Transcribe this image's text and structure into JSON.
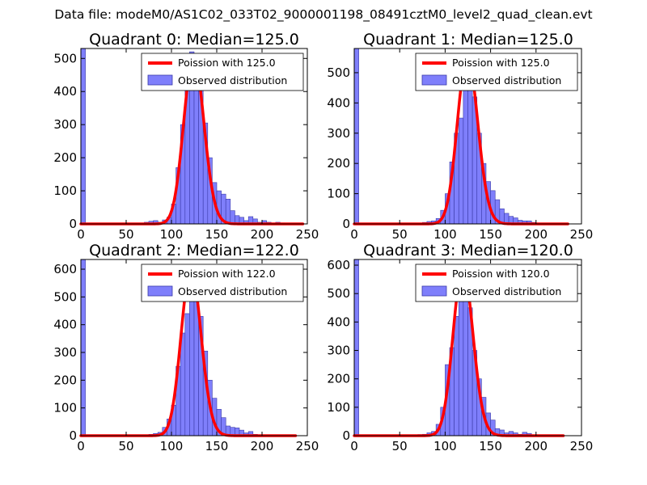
{
  "figure": {
    "suptitle": "Data file: modeM0/AS1C02_033T02_9000001198_08491cztM0_level2_quad_clean.evt"
  },
  "colors": {
    "poisson_line": "#ff0000",
    "histogram_fill": "#7f7ffb",
    "histogram_edge": "#3a3aa8",
    "axes": "#000000",
    "background": "#ffffff"
  },
  "chart_data": [
    {
      "type": "bar",
      "title": "Quadrant 0: Median=125.0",
      "legend": {
        "placement": "top-right",
        "entries": [
          "Poission with 125.0",
          "Observed distribution"
        ]
      },
      "xlim": [
        0,
        250
      ],
      "ylim": [
        0,
        530
      ],
      "xticks": [
        "0",
        "50",
        "100",
        "150",
        "200",
        "250"
      ],
      "yticks": [
        "0",
        "100",
        "200",
        "300",
        "400",
        "500"
      ],
      "ytick_values": [
        0,
        100,
        200,
        300,
        400,
        500
      ],
      "bin_width": 5,
      "bins": [
        {
          "x": 0,
          "value": 530
        },
        {
          "x": 70,
          "value": 5
        },
        {
          "x": 75,
          "value": 8
        },
        {
          "x": 80,
          "value": 10
        },
        {
          "x": 85,
          "value": 5
        },
        {
          "x": 90,
          "value": 12
        },
        {
          "x": 95,
          "value": 20
        },
        {
          "x": 100,
          "value": 60
        },
        {
          "x": 105,
          "value": 170
        },
        {
          "x": 110,
          "value": 300
        },
        {
          "x": 115,
          "value": 410
        },
        {
          "x": 120,
          "value": 520
        },
        {
          "x": 125,
          "value": 490
        },
        {
          "x": 130,
          "value": 430
        },
        {
          "x": 135,
          "value": 305
        },
        {
          "x": 140,
          "value": 200
        },
        {
          "x": 145,
          "value": 125
        },
        {
          "x": 150,
          "value": 100
        },
        {
          "x": 155,
          "value": 90
        },
        {
          "x": 160,
          "value": 75
        },
        {
          "x": 165,
          "value": 40
        },
        {
          "x": 170,
          "value": 25
        },
        {
          "x": 175,
          "value": 20
        },
        {
          "x": 180,
          "value": 10
        },
        {
          "x": 185,
          "value": 22
        },
        {
          "x": 190,
          "value": 15
        },
        {
          "x": 195,
          "value": 5
        },
        {
          "x": 200,
          "value": 10
        },
        {
          "x": 205,
          "value": 5
        },
        {
          "x": 210,
          "value": 2
        },
        {
          "x": 215,
          "value": 5
        },
        {
          "x": 220,
          "value": 3
        },
        {
          "x": 225,
          "value": 2
        },
        {
          "x": 230,
          "value": 2
        },
        {
          "x": 235,
          "value": 1
        }
      ],
      "poisson": {
        "mean": 125.0,
        "peak": 505,
        "x_range": [
          0,
          245
        ]
      }
    },
    {
      "type": "bar",
      "title": "Quadrant 1: Median=125.0",
      "legend": {
        "placement": "top-right",
        "entries": [
          "Poission with 125.0",
          "Observed distribution"
        ]
      },
      "xlim": [
        0,
        250
      ],
      "ylim": [
        0,
        580
      ],
      "xticks": [
        "0",
        "50",
        "100",
        "150",
        "200",
        "250"
      ],
      "yticks": [
        "0",
        "100",
        "200",
        "300",
        "400",
        "500"
      ],
      "ytick_values": [
        0,
        100,
        200,
        300,
        400,
        500
      ],
      "bin_width": 5,
      "bins": [
        {
          "x": 0,
          "value": 580
        },
        {
          "x": 75,
          "value": 5
        },
        {
          "x": 80,
          "value": 8
        },
        {
          "x": 85,
          "value": 10
        },
        {
          "x": 90,
          "value": 18
        },
        {
          "x": 95,
          "value": 45
        },
        {
          "x": 100,
          "value": 100
        },
        {
          "x": 105,
          "value": 205
        },
        {
          "x": 110,
          "value": 300
        },
        {
          "x": 115,
          "value": 350
        },
        {
          "x": 120,
          "value": 530
        },
        {
          "x": 125,
          "value": 545
        },
        {
          "x": 130,
          "value": 420
        },
        {
          "x": 135,
          "value": 300
        },
        {
          "x": 140,
          "value": 200
        },
        {
          "x": 145,
          "value": 140
        },
        {
          "x": 150,
          "value": 110
        },
        {
          "x": 155,
          "value": 80
        },
        {
          "x": 160,
          "value": 50
        },
        {
          "x": 165,
          "value": 35
        },
        {
          "x": 170,
          "value": 25
        },
        {
          "x": 175,
          "value": 20
        },
        {
          "x": 180,
          "value": 12
        },
        {
          "x": 185,
          "value": 10
        },
        {
          "x": 190,
          "value": 10
        },
        {
          "x": 195,
          "value": 5
        },
        {
          "x": 200,
          "value": 3
        },
        {
          "x": 205,
          "value": 2
        },
        {
          "x": 210,
          "value": 2
        }
      ],
      "poisson": {
        "mean": 125.0,
        "peak": 555,
        "x_range": [
          0,
          235
        ]
      }
    },
    {
      "type": "bar",
      "title": "Quadrant 2: Median=122.0",
      "legend": {
        "placement": "top-right",
        "entries": [
          "Poission with 122.0",
          "Observed distribution"
        ]
      },
      "xlim": [
        0,
        250
      ],
      "ylim": [
        0,
        635
      ],
      "xticks": [
        "0",
        "50",
        "100",
        "150",
        "200",
        "250"
      ],
      "yticks": [
        "0",
        "100",
        "200",
        "300",
        "400",
        "500",
        "600"
      ],
      "ytick_values": [
        0,
        100,
        200,
        300,
        400,
        500,
        600
      ],
      "bin_width": 5,
      "bins": [
        {
          "x": 0,
          "value": 635
        },
        {
          "x": 70,
          "value": 3
        },
        {
          "x": 75,
          "value": 5
        },
        {
          "x": 80,
          "value": 8
        },
        {
          "x": 85,
          "value": 12
        },
        {
          "x": 90,
          "value": 30
        },
        {
          "x": 95,
          "value": 60
        },
        {
          "x": 100,
          "value": 110
        },
        {
          "x": 105,
          "value": 250
        },
        {
          "x": 110,
          "value": 370
        },
        {
          "x": 115,
          "value": 440
        },
        {
          "x": 120,
          "value": 560
        },
        {
          "x": 125,
          "value": 555
        },
        {
          "x": 130,
          "value": 430
        },
        {
          "x": 135,
          "value": 305
        },
        {
          "x": 140,
          "value": 200
        },
        {
          "x": 145,
          "value": 135
        },
        {
          "x": 150,
          "value": 95
        },
        {
          "x": 155,
          "value": 65
        },
        {
          "x": 160,
          "value": 35
        },
        {
          "x": 165,
          "value": 30
        },
        {
          "x": 170,
          "value": 28
        },
        {
          "x": 175,
          "value": 20
        },
        {
          "x": 180,
          "value": 10
        },
        {
          "x": 185,
          "value": 15
        },
        {
          "x": 190,
          "value": 5
        },
        {
          "x": 195,
          "value": 2
        },
        {
          "x": 200,
          "value": 2
        },
        {
          "x": 205,
          "value": 1
        }
      ],
      "poisson": {
        "mean": 122.0,
        "peak": 600,
        "x_range": [
          0,
          237
        ]
      }
    },
    {
      "type": "bar",
      "title": "Quadrant 3: Median=120.0",
      "legend": {
        "placement": "top-right",
        "entries": [
          "Poission with 120.0",
          "Observed distribution"
        ]
      },
      "xlim": [
        0,
        250
      ],
      "ylim": [
        0,
        620
      ],
      "xticks": [
        "0",
        "50",
        "100",
        "150",
        "200",
        "250"
      ],
      "yticks": [
        "0",
        "100",
        "200",
        "300",
        "400",
        "500",
        "600"
      ],
      "ytick_values": [
        0,
        100,
        200,
        300,
        400,
        500,
        600
      ],
      "bin_width": 5,
      "bins": [
        {
          "x": 0,
          "value": 620
        },
        {
          "x": 70,
          "value": 4
        },
        {
          "x": 75,
          "value": 5
        },
        {
          "x": 80,
          "value": 10
        },
        {
          "x": 85,
          "value": 15
        },
        {
          "x": 90,
          "value": 40
        },
        {
          "x": 95,
          "value": 100
        },
        {
          "x": 100,
          "value": 250
        },
        {
          "x": 105,
          "value": 310
        },
        {
          "x": 110,
          "value": 420
        },
        {
          "x": 115,
          "value": 560
        },
        {
          "x": 120,
          "value": 555
        },
        {
          "x": 125,
          "value": 450
        },
        {
          "x": 130,
          "value": 300
        },
        {
          "x": 135,
          "value": 200
        },
        {
          "x": 140,
          "value": 135
        },
        {
          "x": 145,
          "value": 80
        },
        {
          "x": 150,
          "value": 55
        },
        {
          "x": 155,
          "value": 25
        },
        {
          "x": 160,
          "value": 20
        },
        {
          "x": 165,
          "value": 10
        },
        {
          "x": 170,
          "value": 15
        },
        {
          "x": 175,
          "value": 10
        },
        {
          "x": 180,
          "value": 5
        },
        {
          "x": 185,
          "value": 12
        },
        {
          "x": 190,
          "value": 8
        },
        {
          "x": 195,
          "value": 3
        },
        {
          "x": 200,
          "value": 2
        },
        {
          "x": 205,
          "value": 1
        }
      ],
      "poisson": {
        "mean": 120.0,
        "peak": 590,
        "x_range": [
          0,
          230
        ]
      }
    }
  ]
}
